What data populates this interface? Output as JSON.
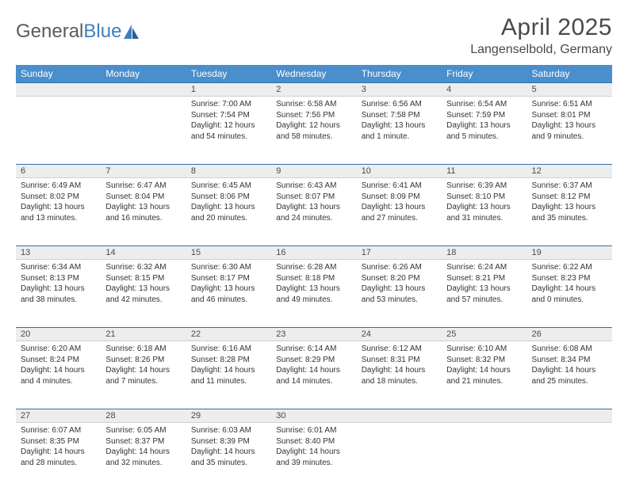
{
  "brand": {
    "part1": "General",
    "part2": "Blue"
  },
  "title": "April 2025",
  "location": "Langenselbold, Germany",
  "header_bg": "#4a8ecb",
  "header_fg": "#ffffff",
  "daynum_bg": "#ededed",
  "rule_color": "#2f6fa8",
  "weekdays": [
    "Sunday",
    "Monday",
    "Tuesday",
    "Wednesday",
    "Thursday",
    "Friday",
    "Saturday"
  ],
  "weeks": [
    {
      "nums": [
        "",
        "",
        "1",
        "2",
        "3",
        "4",
        "5"
      ],
      "cells": [
        {
          "empty": true
        },
        {
          "empty": true
        },
        {
          "sunrise": "Sunrise: 7:00 AM",
          "sunset": "Sunset: 7:54 PM",
          "day1": "Daylight: 12 hours",
          "day2": "and 54 minutes."
        },
        {
          "sunrise": "Sunrise: 6:58 AM",
          "sunset": "Sunset: 7:56 PM",
          "day1": "Daylight: 12 hours",
          "day2": "and 58 minutes."
        },
        {
          "sunrise": "Sunrise: 6:56 AM",
          "sunset": "Sunset: 7:58 PM",
          "day1": "Daylight: 13 hours",
          "day2": "and 1 minute."
        },
        {
          "sunrise": "Sunrise: 6:54 AM",
          "sunset": "Sunset: 7:59 PM",
          "day1": "Daylight: 13 hours",
          "day2": "and 5 minutes."
        },
        {
          "sunrise": "Sunrise: 6:51 AM",
          "sunset": "Sunset: 8:01 PM",
          "day1": "Daylight: 13 hours",
          "day2": "and 9 minutes."
        }
      ]
    },
    {
      "nums": [
        "6",
        "7",
        "8",
        "9",
        "10",
        "11",
        "12"
      ],
      "cells": [
        {
          "sunrise": "Sunrise: 6:49 AM",
          "sunset": "Sunset: 8:02 PM",
          "day1": "Daylight: 13 hours",
          "day2": "and 13 minutes."
        },
        {
          "sunrise": "Sunrise: 6:47 AM",
          "sunset": "Sunset: 8:04 PM",
          "day1": "Daylight: 13 hours",
          "day2": "and 16 minutes."
        },
        {
          "sunrise": "Sunrise: 6:45 AM",
          "sunset": "Sunset: 8:06 PM",
          "day1": "Daylight: 13 hours",
          "day2": "and 20 minutes."
        },
        {
          "sunrise": "Sunrise: 6:43 AM",
          "sunset": "Sunset: 8:07 PM",
          "day1": "Daylight: 13 hours",
          "day2": "and 24 minutes."
        },
        {
          "sunrise": "Sunrise: 6:41 AM",
          "sunset": "Sunset: 8:09 PM",
          "day1": "Daylight: 13 hours",
          "day2": "and 27 minutes."
        },
        {
          "sunrise": "Sunrise: 6:39 AM",
          "sunset": "Sunset: 8:10 PM",
          "day1": "Daylight: 13 hours",
          "day2": "and 31 minutes."
        },
        {
          "sunrise": "Sunrise: 6:37 AM",
          "sunset": "Sunset: 8:12 PM",
          "day1": "Daylight: 13 hours",
          "day2": "and 35 minutes."
        }
      ]
    },
    {
      "nums": [
        "13",
        "14",
        "15",
        "16",
        "17",
        "18",
        "19"
      ],
      "cells": [
        {
          "sunrise": "Sunrise: 6:34 AM",
          "sunset": "Sunset: 8:13 PM",
          "day1": "Daylight: 13 hours",
          "day2": "and 38 minutes."
        },
        {
          "sunrise": "Sunrise: 6:32 AM",
          "sunset": "Sunset: 8:15 PM",
          "day1": "Daylight: 13 hours",
          "day2": "and 42 minutes."
        },
        {
          "sunrise": "Sunrise: 6:30 AM",
          "sunset": "Sunset: 8:17 PM",
          "day1": "Daylight: 13 hours",
          "day2": "and 46 minutes."
        },
        {
          "sunrise": "Sunrise: 6:28 AM",
          "sunset": "Sunset: 8:18 PM",
          "day1": "Daylight: 13 hours",
          "day2": "and 49 minutes."
        },
        {
          "sunrise": "Sunrise: 6:26 AM",
          "sunset": "Sunset: 8:20 PM",
          "day1": "Daylight: 13 hours",
          "day2": "and 53 minutes."
        },
        {
          "sunrise": "Sunrise: 6:24 AM",
          "sunset": "Sunset: 8:21 PM",
          "day1": "Daylight: 13 hours",
          "day2": "and 57 minutes."
        },
        {
          "sunrise": "Sunrise: 6:22 AM",
          "sunset": "Sunset: 8:23 PM",
          "day1": "Daylight: 14 hours",
          "day2": "and 0 minutes."
        }
      ]
    },
    {
      "nums": [
        "20",
        "21",
        "22",
        "23",
        "24",
        "25",
        "26"
      ],
      "cells": [
        {
          "sunrise": "Sunrise: 6:20 AM",
          "sunset": "Sunset: 8:24 PM",
          "day1": "Daylight: 14 hours",
          "day2": "and 4 minutes."
        },
        {
          "sunrise": "Sunrise: 6:18 AM",
          "sunset": "Sunset: 8:26 PM",
          "day1": "Daylight: 14 hours",
          "day2": "and 7 minutes."
        },
        {
          "sunrise": "Sunrise: 6:16 AM",
          "sunset": "Sunset: 8:28 PM",
          "day1": "Daylight: 14 hours",
          "day2": "and 11 minutes."
        },
        {
          "sunrise": "Sunrise: 6:14 AM",
          "sunset": "Sunset: 8:29 PM",
          "day1": "Daylight: 14 hours",
          "day2": "and 14 minutes."
        },
        {
          "sunrise": "Sunrise: 6:12 AM",
          "sunset": "Sunset: 8:31 PM",
          "day1": "Daylight: 14 hours",
          "day2": "and 18 minutes."
        },
        {
          "sunrise": "Sunrise: 6:10 AM",
          "sunset": "Sunset: 8:32 PM",
          "day1": "Daylight: 14 hours",
          "day2": "and 21 minutes."
        },
        {
          "sunrise": "Sunrise: 6:08 AM",
          "sunset": "Sunset: 8:34 PM",
          "day1": "Daylight: 14 hours",
          "day2": "and 25 minutes."
        }
      ]
    },
    {
      "nums": [
        "27",
        "28",
        "29",
        "30",
        "",
        "",
        ""
      ],
      "cells": [
        {
          "sunrise": "Sunrise: 6:07 AM",
          "sunset": "Sunset: 8:35 PM",
          "day1": "Daylight: 14 hours",
          "day2": "and 28 minutes."
        },
        {
          "sunrise": "Sunrise: 6:05 AM",
          "sunset": "Sunset: 8:37 PM",
          "day1": "Daylight: 14 hours",
          "day2": "and 32 minutes."
        },
        {
          "sunrise": "Sunrise: 6:03 AM",
          "sunset": "Sunset: 8:39 PM",
          "day1": "Daylight: 14 hours",
          "day2": "and 35 minutes."
        },
        {
          "sunrise": "Sunrise: 6:01 AM",
          "sunset": "Sunset: 8:40 PM",
          "day1": "Daylight: 14 hours",
          "day2": "and 39 minutes."
        },
        {
          "empty": true
        },
        {
          "empty": true
        },
        {
          "empty": true
        }
      ]
    }
  ]
}
